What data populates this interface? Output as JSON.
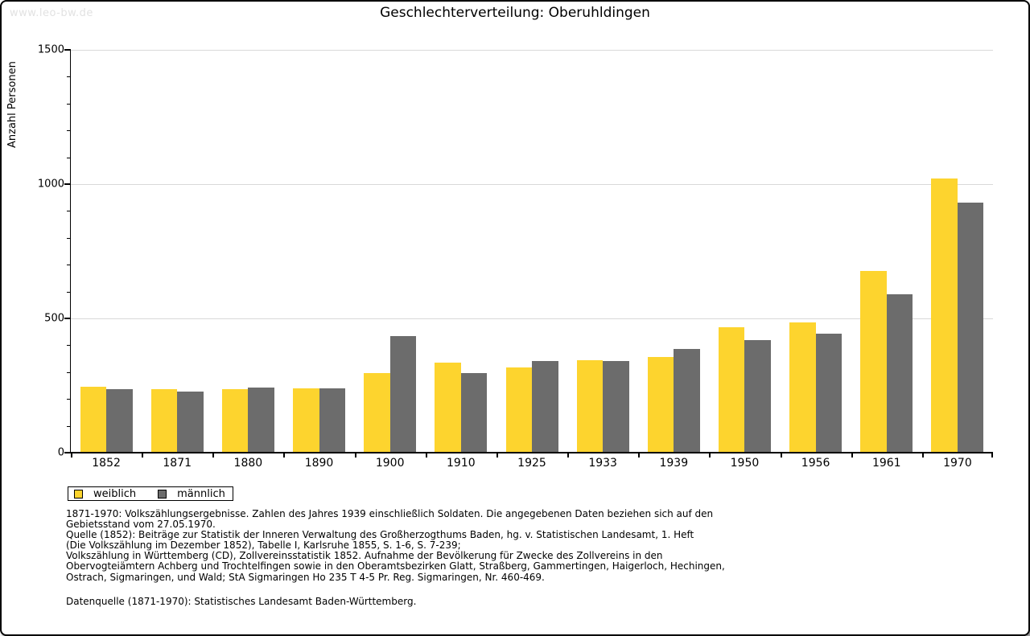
{
  "page": {
    "watermark": "www.leo-bw.de",
    "title": "Geschlechterverteilung: Oberuhldingen"
  },
  "chart_data": {
    "type": "bar",
    "title": "Geschlechterverteilung: Oberuhldingen",
    "xlabel": "",
    "ylabel": "Anzahl Personen",
    "categories": [
      "1852",
      "1871",
      "1880",
      "1890",
      "1900",
      "1910",
      "1925",
      "1933",
      "1939",
      "1950",
      "1956",
      "1961",
      "1970"
    ],
    "series": [
      {
        "name": "weiblich",
        "color": "#fdd42e",
        "values": [
          245,
          238,
          237,
          240,
          296,
          335,
          316,
          344,
          355,
          466,
          486,
          676,
          1020
        ]
      },
      {
        "name": "männlich",
        "color": "#6c6c6c",
        "values": [
          236,
          229,
          242,
          240,
          434,
          295,
          341,
          341,
          387,
          420,
          443,
          590,
          932
        ]
      }
    ],
    "ylim": [
      0,
      1500
    ],
    "yticks": [
      0,
      500,
      1000,
      1500
    ],
    "minor_tick_step": 100,
    "grid": "horizontal-major-lines",
    "gridline_color": "#d9d9d9",
    "legend_position": "bottom-left"
  },
  "legend": {
    "items": [
      {
        "label": "weiblich",
        "color": "#fdd42e"
      },
      {
        "label": "männlich",
        "color": "#6c6c6c"
      }
    ]
  },
  "footnotes": {
    "source_text": "1871-1970: Volkszählungsergebnisse. Zahlen des Jahres 1939 einschließlich Soldaten. Die angegebenen Daten beziehen sich auf den\nGebietsstand vom 27.05.1970.\nQuelle (1852): Beiträge zur Statistik der Inneren Verwaltung des Großherzogthums Baden, hg. v. Statistischen Landesamt, 1. Heft\n(Die Volkszählung im Dezember 1852), Tabelle I, Karlsruhe 1855, S. 1-6, S. 7-239;\nVolkszählung in Württemberg (CD), Zollvereinsstatistik 1852. Aufnahme der Bevölkerung für Zwecke des Zollvereins in den\nObervogteiämtern Achberg und Trochtelfingen sowie in den Oberamtsbezirken Glatt, Straßberg, Gammertingen, Haigerloch, Hechingen,\nOstrach, Sigmaringen, und Wald; StA Sigmaringen Ho 235 T 4-5 Pr. Reg. Sigmaringen, Nr. 460-469.",
    "data_source": "Datenquelle (1871-1970): Statistisches Landesamt Baden-Württemberg."
  }
}
